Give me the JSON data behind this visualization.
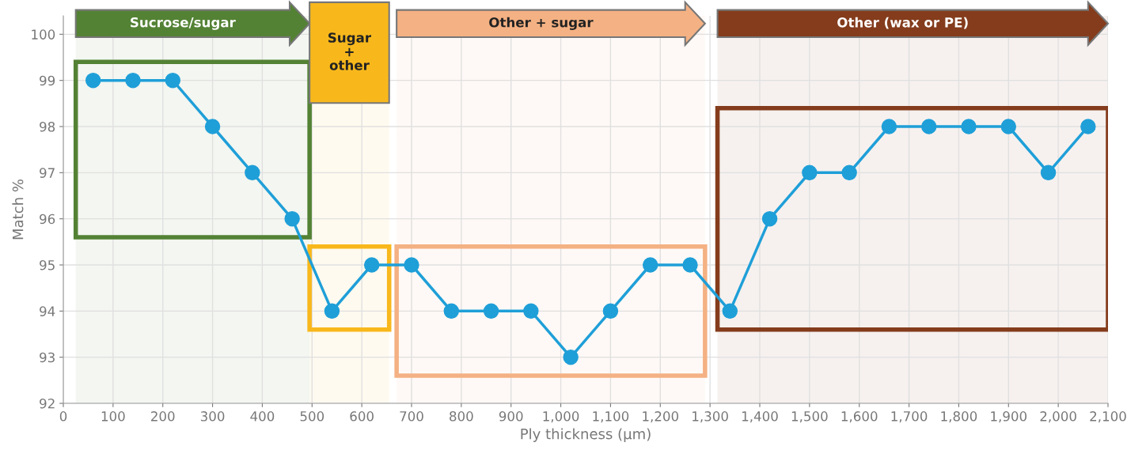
{
  "chart_data": {
    "type": "line",
    "xlabel": "Ply thickness (µm)",
    "ylabel": "Match %",
    "x": [
      60,
      140,
      220,
      300,
      380,
      460,
      540,
      620,
      700,
      780,
      860,
      940,
      1020,
      1100,
      1180,
      1260,
      1340,
      1420,
      1500,
      1580,
      1660,
      1740,
      1820,
      1900,
      1980,
      2060
    ],
    "series": [
      {
        "color": "#1f9fd8",
        "values": [
          99,
          99,
          99,
          98,
          97,
          96,
          94,
          95,
          95,
          94,
          94,
          94,
          93,
          94,
          95,
          95,
          94,
          96,
          97,
          97,
          98,
          98,
          98,
          98,
          97,
          98
        ]
      }
    ],
    "marker": "circle",
    "line_style": "solid",
    "grid": true,
    "xlim": [
      0,
      2100
    ],
    "ylim": [
      92,
      100.4
    ],
    "xticks": [
      0,
      100,
      200,
      300,
      400,
      500,
      600,
      700,
      800,
      900,
      {
        "value": 1000,
        "label": "1,000"
      },
      {
        "value": 1100,
        "label": "1,100"
      },
      {
        "value": 1200,
        "label": "1,200"
      },
      {
        "value": 1300,
        "label": "1,300"
      },
      {
        "value": 1400,
        "label": "1,400"
      },
      {
        "value": 1500,
        "label": "1,500"
      },
      {
        "value": 1600,
        "label": "1,600"
      },
      {
        "value": 1700,
        "label": "1,700"
      },
      {
        "value": 1800,
        "label": "1,800"
      },
      {
        "value": 1900,
        "label": "1,900"
      },
      {
        "value": 2000,
        "label": "2,000"
      },
      {
        "value": 2100,
        "label": "2,100"
      }
    ],
    "yticks": [
      92,
      93,
      94,
      95,
      96,
      97,
      98,
      99,
      100
    ],
    "bands": [
      {
        "axis": "x",
        "from": 25,
        "to": 495,
        "label": "Sucrose/sugar",
        "color": "#548235"
      },
      {
        "axis": "x",
        "from": 495,
        "to": 655,
        "label": "Sugar + other",
        "color": "#f8b81c"
      },
      {
        "axis": "x",
        "from": 670,
        "to": 1290,
        "label": "Other + sugar",
        "color": "#f4b183"
      },
      {
        "axis": "x",
        "from": 1315,
        "to": 2100,
        "label": "Other (wax or PE)",
        "color": "#843c1c"
      }
    ]
  }
}
